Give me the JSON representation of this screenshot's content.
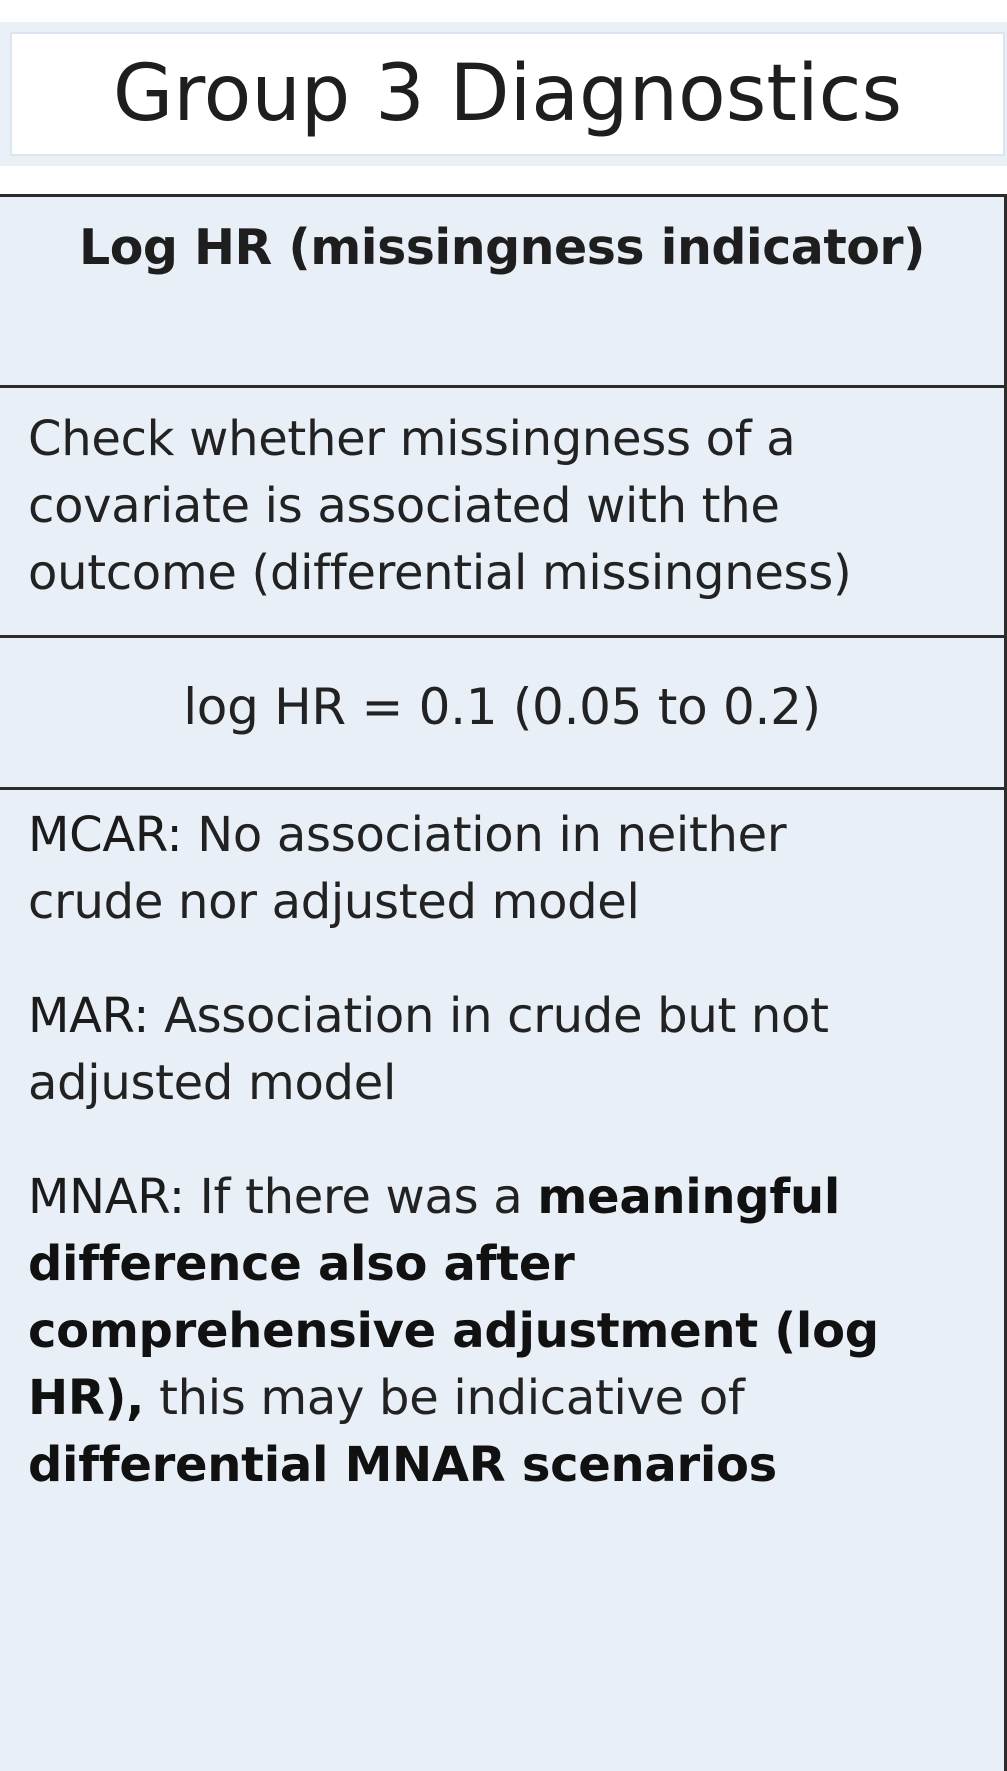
{
  "title": "Group 3 Diagnostics",
  "table": {
    "header": "Log HR (missingness indicator)",
    "purpose": "Check whether missingness of a covariate is associated with the outcome (differential missingness)",
    "value": "log HR = 0.1 (0.05 to 0.2)",
    "interpretation": {
      "mcar_label": "MCAR:",
      "mcar_text": " No association in neither crude nor adjusted model",
      "mar_label": "MAR:",
      "mar_text": " Association in crude but not adjusted model",
      "mnar_label": "MNAR:",
      "mnar_text_1": " If there was a ",
      "mnar_emph_1": "meaningful difference also after comprehensive adjustment (log HR),",
      "mnar_text_2": " this may be indicative of ",
      "mnar_emph_2": "differential MNAR scenarios"
    }
  },
  "colors": {
    "panel_background": "#e8eff7",
    "title_band": "#e9f0f7",
    "border": "#2b2b2b",
    "text": "#222222"
  }
}
